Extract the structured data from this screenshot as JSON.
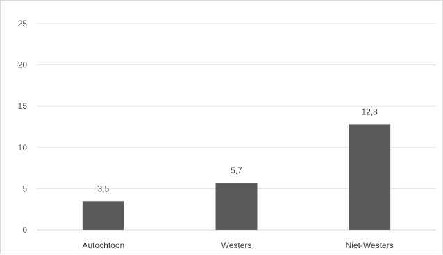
{
  "chart_data": {
    "type": "bar",
    "categories": [
      "Autochtoon",
      "Westers",
      "Niet-Westers"
    ],
    "values": [
      3.5,
      5.7,
      12.8
    ],
    "data_labels": [
      "3,5",
      "5,7",
      "12,8"
    ],
    "y_ticks": [
      0,
      5,
      10,
      15,
      20,
      25
    ],
    "ylim": [
      0,
      25
    ],
    "grid": true,
    "legend": "none",
    "bar_color": "#58595b"
  }
}
